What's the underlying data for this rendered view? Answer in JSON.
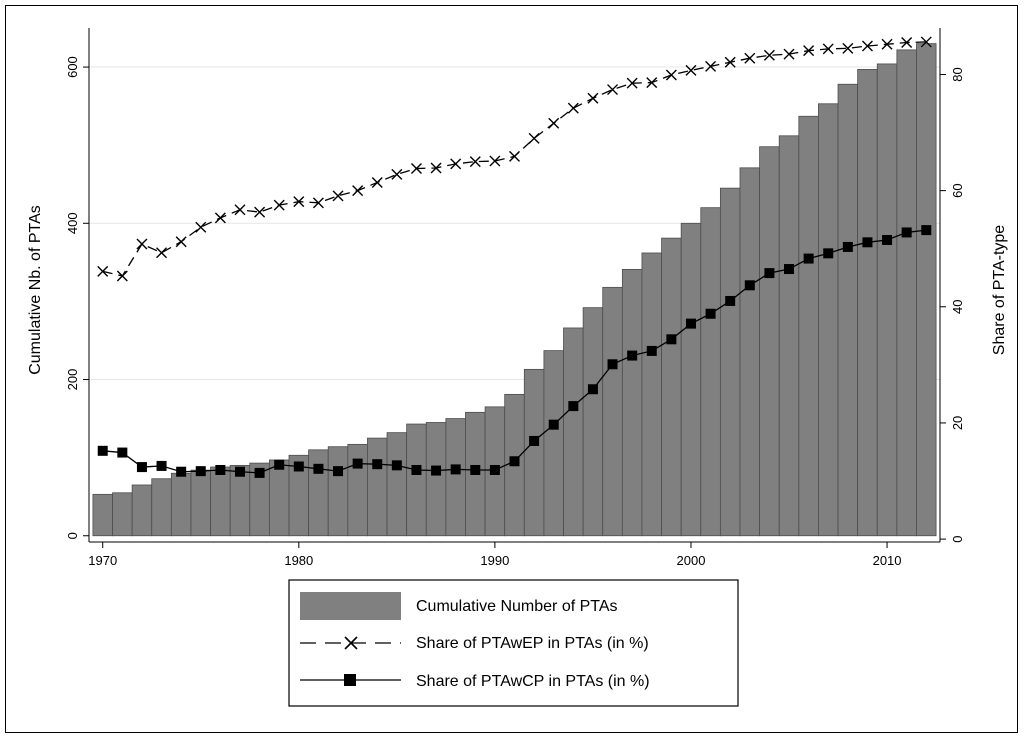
{
  "chart_data": {
    "type": "bar",
    "x": [
      1970,
      1971,
      1972,
      1973,
      1974,
      1975,
      1976,
      1977,
      1978,
      1979,
      1980,
      1981,
      1982,
      1983,
      1984,
      1985,
      1986,
      1987,
      1988,
      1989,
      1990,
      1991,
      1992,
      1993,
      1994,
      1995,
      1996,
      1997,
      1998,
      1999,
      2000,
      2001,
      2002,
      2003,
      2004,
      2005,
      2006,
      2007,
      2008,
      2009,
      2010,
      2011,
      2012
    ],
    "xlim": [
      1969.3,
      2012.7
    ],
    "xticks": [
      1970,
      1980,
      1990,
      2000,
      2010
    ],
    "ylabel_left": "Cumulative Nb. of PTAs",
    "ylim_left": [
      -8,
      650
    ],
    "yticks_left": [
      0,
      200,
      400,
      600
    ],
    "ylabel_right": "Share of PTA-type",
    "ylim_right": [
      -0.5,
      88.0
    ],
    "yticks_right": [
      0,
      20,
      40,
      60,
      80
    ],
    "grid": true,
    "legend_position": "bottom-center",
    "series": [
      {
        "name": "Cumulative Number of PTAs",
        "type": "bar",
        "axis": "left",
        "color": "#808080",
        "values": [
          53,
          55,
          65,
          73,
          80,
          84,
          88,
          90,
          93,
          97,
          103,
          110,
          114,
          117,
          125,
          132,
          143,
          145,
          150,
          158,
          165,
          181,
          213,
          237,
          266,
          292,
          318,
          341,
          362,
          381,
          400,
          420,
          445,
          471,
          498,
          512,
          537,
          553,
          578,
          597,
          604,
          622,
          630
        ]
      },
      {
        "name": "Share of PTAwEP in PTAs (in %)",
        "type": "line",
        "axis": "right",
        "marker": "x",
        "dash": "dashed",
        "values": [
          46.1,
          45.3,
          50.8,
          49.3,
          51.2,
          53.7,
          55.3,
          56.7,
          56.3,
          57.5,
          58.1,
          57.9,
          59.1,
          60.0,
          61.4,
          62.8,
          63.8,
          63.9,
          64.6,
          65.0,
          65.1,
          65.9,
          69.0,
          71.6,
          74.2,
          75.9,
          77.4,
          78.5,
          78.6,
          79.9,
          80.7,
          81.4,
          82.1,
          82.8,
          83.3,
          83.5,
          84.1,
          84.4,
          84.5,
          84.9,
          85.2,
          85.5,
          85.6
        ]
      },
      {
        "name": "Share of PTAwCP in PTAs (in %)",
        "type": "line",
        "axis": "right",
        "marker": "square",
        "dash": "solid",
        "values": [
          15.2,
          14.9,
          12.4,
          12.6,
          11.6,
          11.7,
          11.9,
          11.6,
          11.4,
          12.8,
          12.5,
          12.1,
          11.7,
          13.0,
          12.9,
          12.7,
          11.9,
          11.8,
          12.0,
          11.9,
          11.9,
          13.4,
          16.9,
          19.7,
          22.9,
          25.8,
          30.1,
          31.6,
          32.4,
          34.4,
          37.1,
          38.8,
          41.0,
          43.7,
          45.8,
          46.5,
          48.3,
          49.2,
          50.3,
          51.1,
          51.5,
          52.8,
          53.2
        ]
      }
    ]
  }
}
